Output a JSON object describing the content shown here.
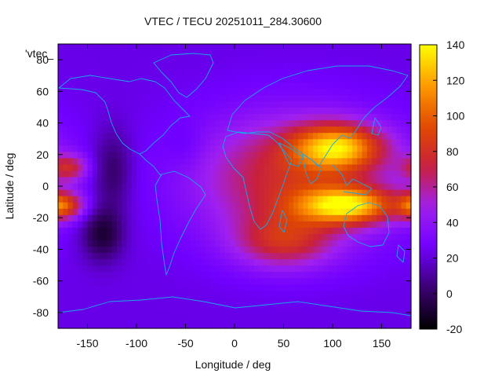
{
  "chart_data": {
    "type": "heatmap",
    "title": "VTEC / TECU 20251011_284.30600",
    "xlabel": "Longitude / deg",
    "ylabel": "Latitude / deg",
    "xlim": [
      -180,
      180
    ],
    "ylim": [
      -90,
      90
    ],
    "x_ticks": [
      -150,
      -100,
      -50,
      0,
      50,
      100,
      150
    ],
    "y_ticks": [
      -80,
      -60,
      -40,
      -20,
      0,
      20,
      40,
      60,
      80
    ],
    "colorbar": {
      "range": [
        -20,
        140
      ],
      "ticks": [
        -20,
        0,
        20,
        40,
        60,
        80,
        100,
        120,
        140
      ],
      "palette": [
        "#000000",
        "#3a0070",
        "#7000ff",
        "#a020f0",
        "#c8203c",
        "#e04a00",
        "#ff9a00",
        "#ffff00"
      ]
    },
    "legend_label": "'vtec_",
    "background_level": 22,
    "features": [
      {
        "lon": 105,
        "lat": 25,
        "value": 105,
        "sigma_lon": 32,
        "sigma_lat": 10
      },
      {
        "lon": 115,
        "lat": -12,
        "value": 112,
        "sigma_lon": 35,
        "sigma_lat": 8
      },
      {
        "lon": 60,
        "lat": 5,
        "value": 78,
        "sigma_lon": 70,
        "sigma_lat": 28
      },
      {
        "lon": 50,
        "lat": -35,
        "value": 65,
        "sigma_lon": 35,
        "sigma_lat": 12
      },
      {
        "lon": -170,
        "lat": 12,
        "value": 68,
        "sigma_lon": 14,
        "sigma_lat": 6
      },
      {
        "lon": -170,
        "lat": -12,
        "value": 62,
        "sigma_lon": 14,
        "sigma_lat": 6
      },
      {
        "lon": 180,
        "lat": -12,
        "value": 55,
        "sigma_lon": 10,
        "sigma_lat": 6
      },
      {
        "lon": -135,
        "lat": -30,
        "value": -10,
        "sigma_lon": 15,
        "sigma_lat": 12
      },
      {
        "lon": -125,
        "lat": 10,
        "value": 0,
        "sigma_lon": 14,
        "sigma_lat": 18
      },
      {
        "lon": -50,
        "lat": 25,
        "value": 15,
        "sigma_lon": 15,
        "sigma_lat": 10
      }
    ]
  }
}
